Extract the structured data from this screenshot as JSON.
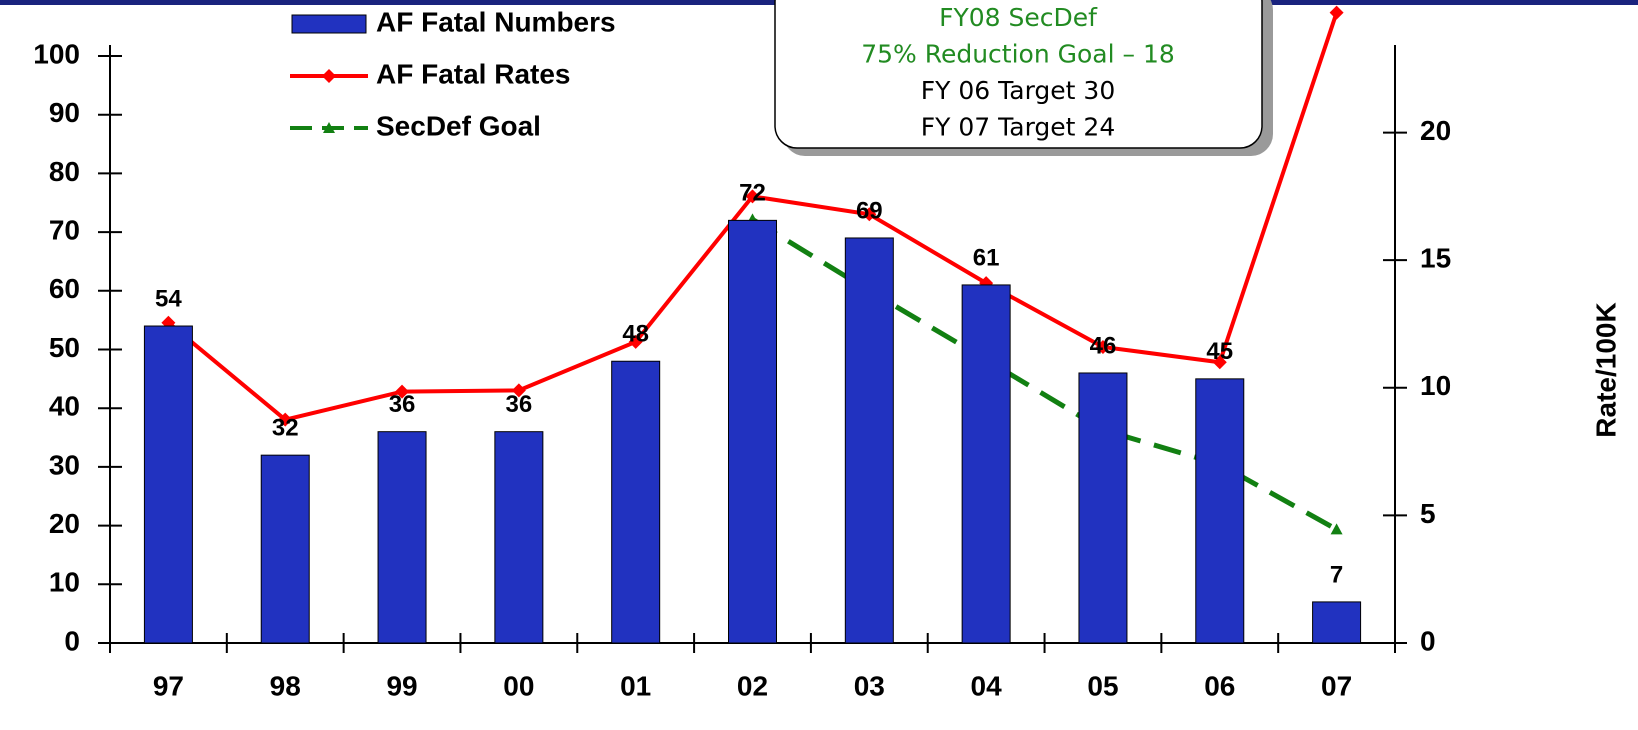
{
  "chart_data": {
    "type": "bar",
    "categories": [
      "97",
      "98",
      "99",
      "00",
      "01",
      "02",
      "03",
      "04",
      "05",
      "06",
      "07"
    ],
    "series": [
      {
        "name": "AF Fatal Numbers",
        "type": "bar",
        "color": "#2132c0",
        "values": [
          54,
          32,
          36,
          36,
          48,
          72,
          69,
          61,
          46,
          45,
          7
        ]
      },
      {
        "name": "AF Fatal Rates",
        "type": "line",
        "axis": "y2",
        "color": "#ff0000",
        "values": [
          12.55,
          8.75,
          9.85,
          9.9,
          11.8,
          17.5,
          16.8,
          14.1,
          11.6,
          11.0,
          24.7
        ]
      },
      {
        "name": "SecDef Goal",
        "type": "line",
        "axis": "y2",
        "dashed": true,
        "color": "#128012",
        "values": [
          null,
          null,
          null,
          null,
          null,
          16.6,
          13.8,
          11.1,
          8.35,
          7.0,
          4.45
        ]
      }
    ],
    "ylim": [
      0,
      100
    ],
    "yticks": [
      0,
      10,
      20,
      30,
      40,
      50,
      60,
      70,
      80,
      90,
      100
    ],
    "y2lim": [
      0,
      23
    ],
    "y2ticks": [
      0,
      5,
      10,
      15,
      20
    ],
    "y2label": "Rate/100K",
    "annotation": [
      {
        "text": "FY08 SecDef",
        "color": "#228b22"
      },
      {
        "text": "75% Reduction Goal – 18",
        "color": "#228b22"
      },
      {
        "text": "FY 06 Target 30",
        "color": "#000000"
      },
      {
        "text": "FY 07 Target 24",
        "color": "#000000"
      }
    ]
  }
}
